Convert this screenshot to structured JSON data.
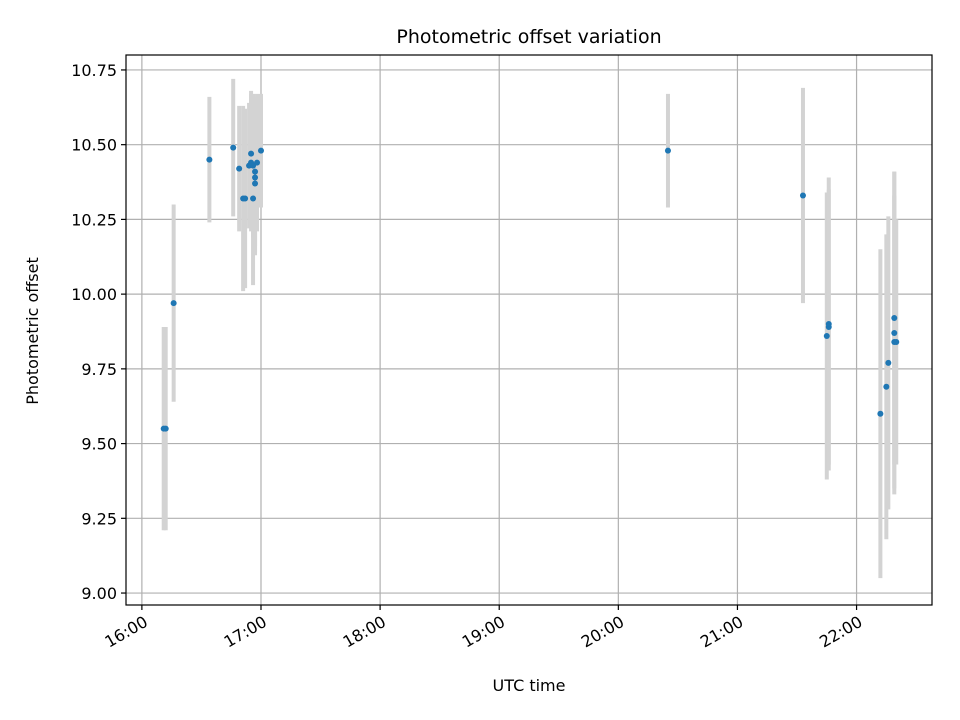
{
  "chart_data": {
    "type": "scatter",
    "title": "Photometric offset variation",
    "xlabel": "UTC time",
    "ylabel": "Photometric offset",
    "x_ticks": [
      "16:00",
      "17:00",
      "18:00",
      "19:00",
      "20:00",
      "21:00",
      "22:00"
    ],
    "y_ticks": [
      "9.00",
      "9.25",
      "9.50",
      "9.75",
      "10.00",
      "10.25",
      "10.50",
      "10.75"
    ],
    "xlim": [
      "15:52",
      "22:38"
    ],
    "ylim": [
      8.96,
      10.8
    ],
    "grid": true,
    "colors": {
      "points": "#1f77b4",
      "errorbars": "#d3d3d3"
    },
    "points": [
      {
        "time": "16:11",
        "y": 9.55,
        "err": 0.34
      },
      {
        "time": "16:12",
        "y": 9.55,
        "err": 0.34
      },
      {
        "time": "16:16",
        "y": 9.97,
        "err": 0.33
      },
      {
        "time": "16:34",
        "y": 10.45,
        "err": 0.21
      },
      {
        "time": "16:46",
        "y": 10.49,
        "err": 0.23
      },
      {
        "time": "16:49",
        "y": 10.42,
        "err": 0.21
      },
      {
        "time": "16:51",
        "y": 10.32,
        "err": 0.31
      },
      {
        "time": "16:52",
        "y": 10.32,
        "err": 0.3
      },
      {
        "time": "16:54",
        "y": 10.43,
        "err": 0.21
      },
      {
        "time": "16:55",
        "y": 10.44,
        "err": 0.23
      },
      {
        "time": "16:55",
        "y": 10.47,
        "err": 0.21
      },
      {
        "time": "16:56",
        "y": 10.32,
        "err": 0.29
      },
      {
        "time": "16:56",
        "y": 10.43,
        "err": 0.24
      },
      {
        "time": "16:57",
        "y": 10.39,
        "err": 0.25
      },
      {
        "time": "16:57",
        "y": 10.37,
        "err": 0.24
      },
      {
        "time": "16:57",
        "y": 10.41,
        "err": 0.25
      },
      {
        "time": "16:58",
        "y": 10.44,
        "err": 0.23
      },
      {
        "time": "17:00",
        "y": 10.48,
        "err": 0.19
      },
      {
        "time": "20:25",
        "y": 10.48,
        "err": 0.19
      },
      {
        "time": "21:33",
        "y": 10.33,
        "err": 0.36
      },
      {
        "time": "21:45",
        "y": 9.86,
        "err": 0.48
      },
      {
        "time": "21:46",
        "y": 9.89,
        "err": 0.46
      },
      {
        "time": "21:46",
        "y": 9.9,
        "err": 0.49
      },
      {
        "time": "22:12",
        "y": 9.6,
        "err": 0.55
      },
      {
        "time": "22:15",
        "y": 9.69,
        "err": 0.51
      },
      {
        "time": "22:16",
        "y": 9.77,
        "err": 0.49
      },
      {
        "time": "22:19",
        "y": 9.92,
        "err": 0.49
      },
      {
        "time": "22:19",
        "y": 9.87,
        "err": 0.54
      },
      {
        "time": "22:19",
        "y": 9.84,
        "err": 0.49
      },
      {
        "time": "22:20",
        "y": 9.84,
        "err": 0.41
      }
    ]
  }
}
